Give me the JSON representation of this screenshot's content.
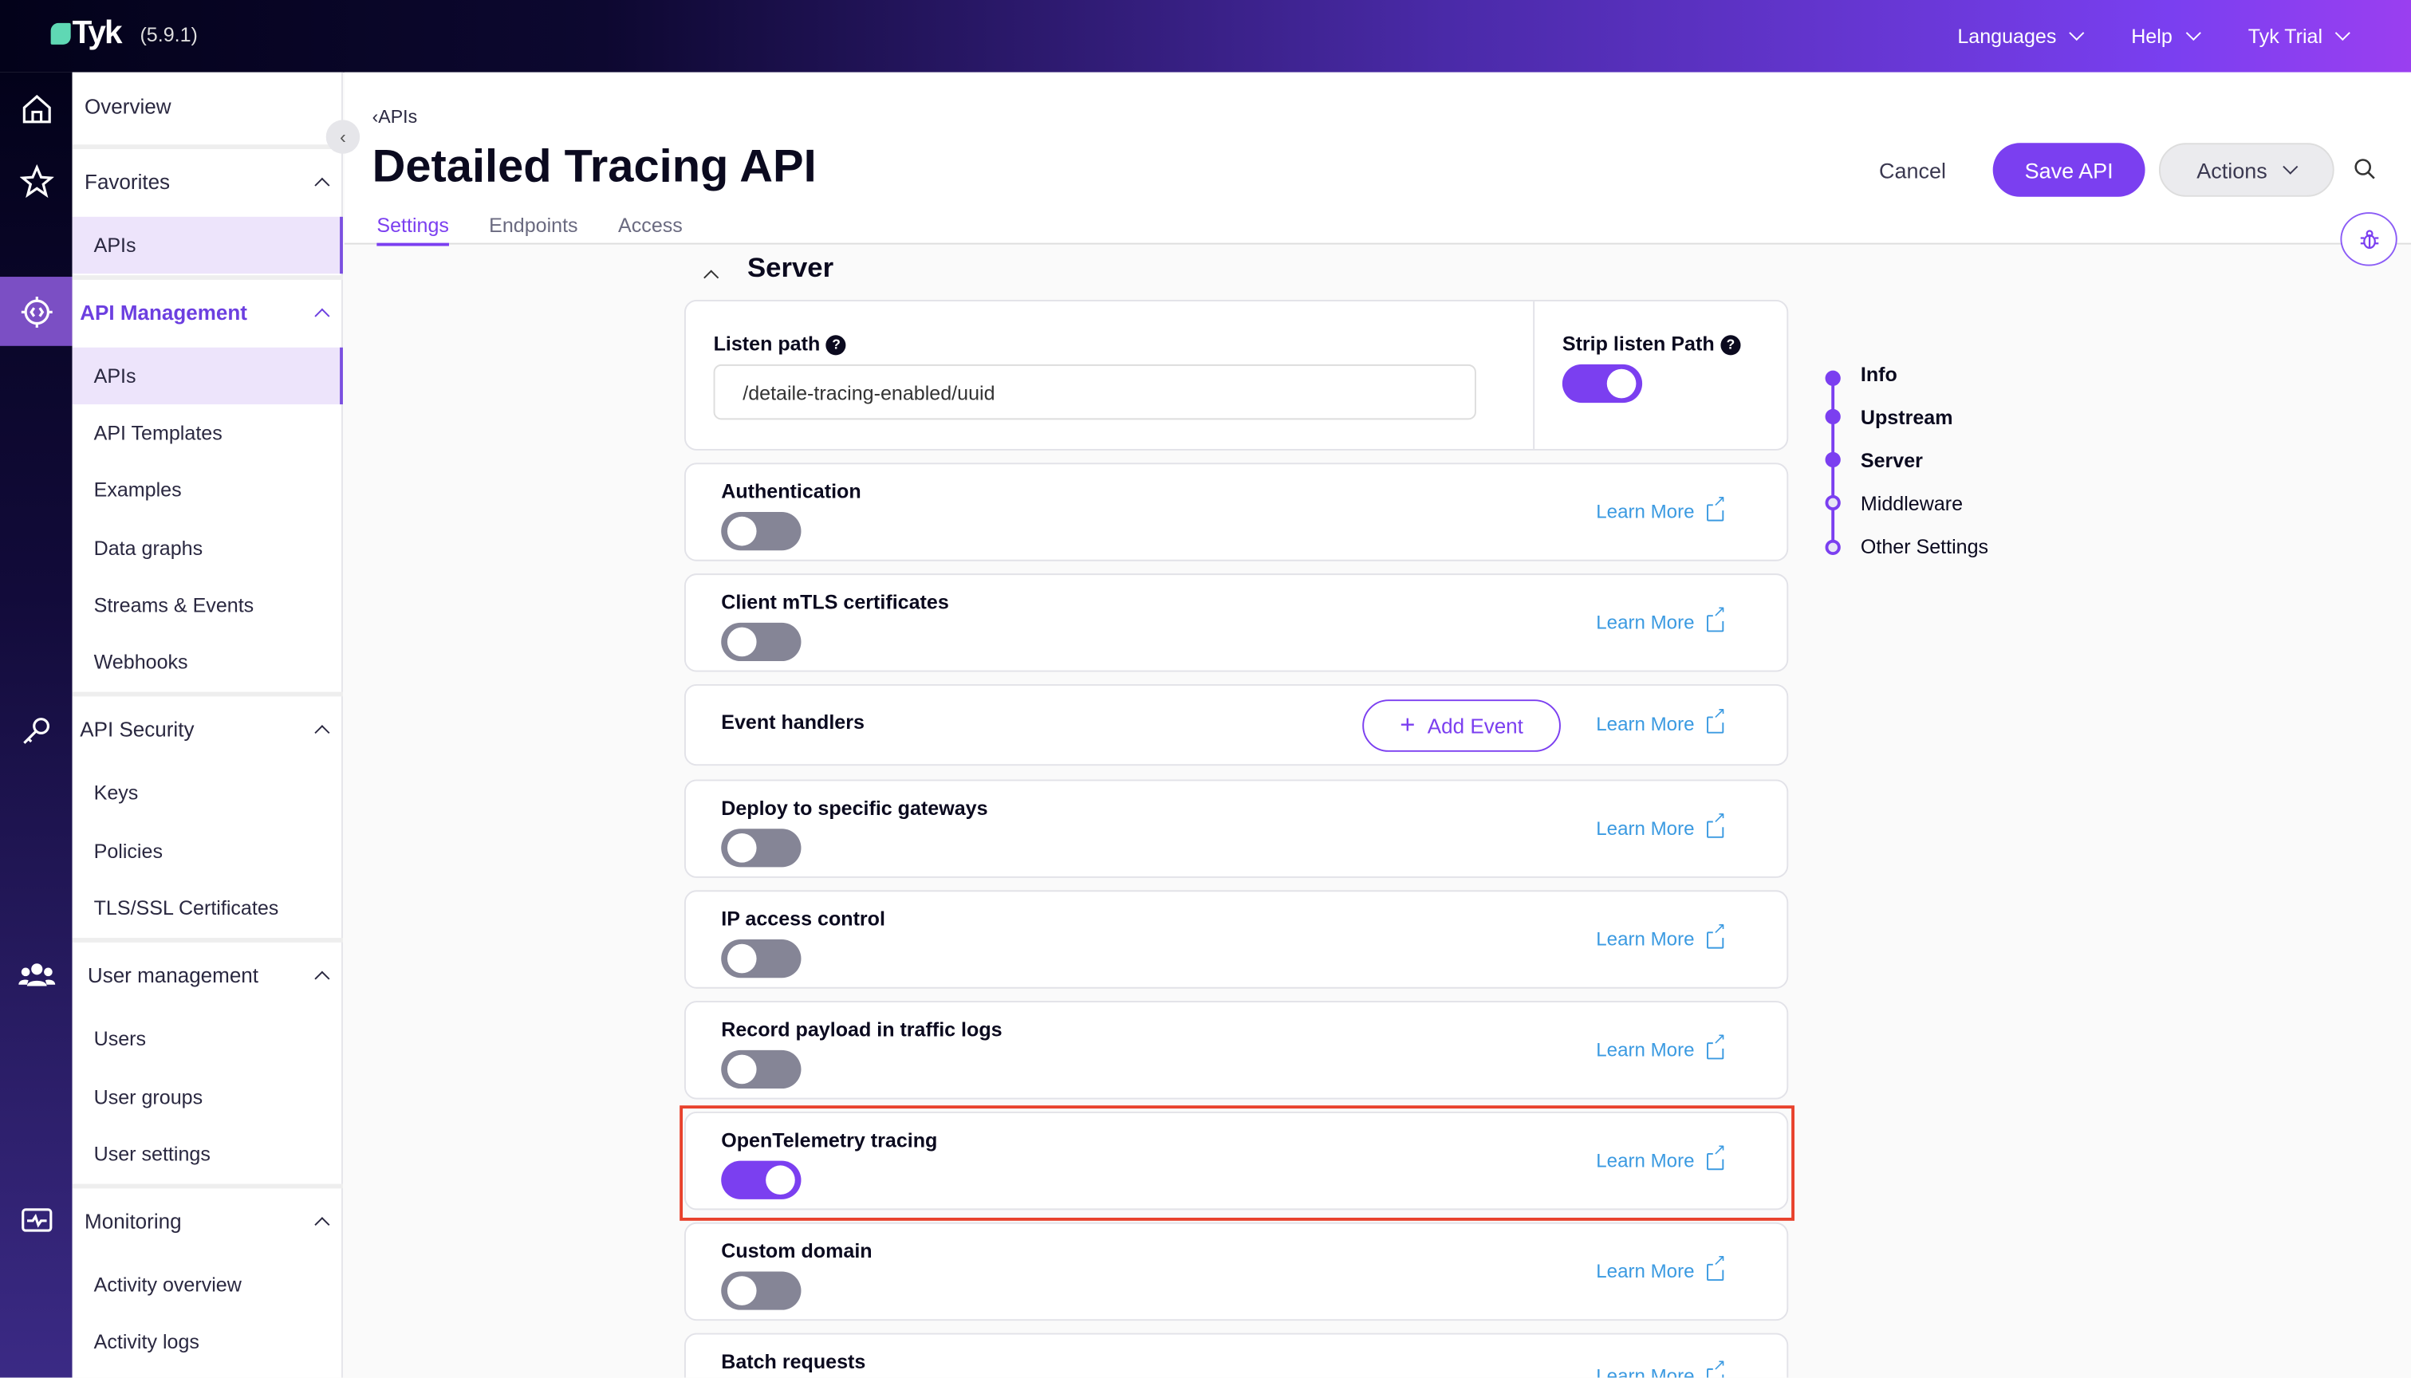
{
  "topbar": {
    "brand": "Tyk",
    "version": "(5.9.1)",
    "nav": [
      "Languages",
      "Help",
      "Tyk Trial"
    ],
    "gradient": [
      "#03021a",
      "#7a3ff0"
    ]
  },
  "rail": {
    "icons": [
      "home-icon",
      "star-icon",
      "api-gear-icon",
      "key-icon",
      "users-icon",
      "monitor-icon"
    ]
  },
  "sidebar": {
    "overview": "Overview",
    "sections": [
      {
        "title": "Favorites",
        "items": [
          "APIs"
        ]
      },
      {
        "title": "API Management",
        "items": [
          "APIs",
          "API Templates",
          "Examples",
          "Data graphs",
          "Streams & Events",
          "Webhooks"
        ]
      },
      {
        "title": "API Security",
        "items": [
          "Keys",
          "Policies",
          "TLS/SSL Certificates"
        ]
      },
      {
        "title": "User management",
        "items": [
          "Users",
          "User groups",
          "User settings"
        ]
      },
      {
        "title": "Monitoring",
        "items": [
          "Activity overview",
          "Activity logs"
        ]
      }
    ]
  },
  "header": {
    "breadcrumb": "APIs",
    "title": "Detailed Tracing API",
    "tabs": [
      "Settings",
      "Endpoints",
      "Access"
    ],
    "active_tab": "Settings",
    "cancel": "Cancel",
    "save": "Save API",
    "actions": "Actions"
  },
  "main": {
    "section": "Server",
    "listen_path": {
      "label": "Listen path",
      "value": "/detaile-tracing-enabled/uuid"
    },
    "strip_listen_path": {
      "label": "Strip listen Path",
      "on": true
    },
    "learn_more": "Learn More",
    "add_event": "Add Event",
    "rows": [
      {
        "label": "Authentication",
        "on": false
      },
      {
        "label": "Client mTLS certificates",
        "on": false
      },
      {
        "label": "Event handlers"
      },
      {
        "label": "Deploy to specific gateways",
        "on": false
      },
      {
        "label": "IP access control",
        "on": false
      },
      {
        "label": "Record payload in traffic logs",
        "on": false
      },
      {
        "label": "OpenTelemetry tracing",
        "on": true,
        "highlighted": true
      },
      {
        "label": "Custom domain",
        "on": false
      },
      {
        "label": "Batch requests"
      }
    ]
  },
  "toc": [
    {
      "label": "Info",
      "done": true
    },
    {
      "label": "Upstream",
      "done": true
    },
    {
      "label": "Server",
      "done": true
    },
    {
      "label": "Middleware",
      "done": false
    },
    {
      "label": "Other Settings",
      "done": false
    }
  ],
  "colors": {
    "accent": "#7b3ff0",
    "link": "#3b9ae1",
    "highlight": "#e8412c"
  }
}
